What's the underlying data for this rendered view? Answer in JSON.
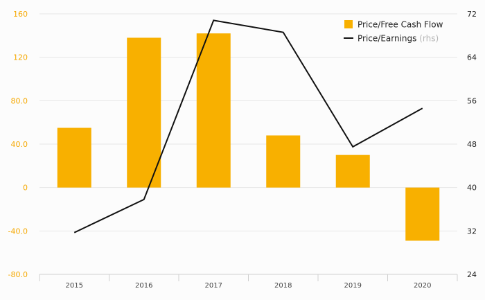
{
  "chart_data": {
    "type": "bar",
    "categories": [
      "2015",
      "2016",
      "2017",
      "2018",
      "2019",
      "2020"
    ],
    "series": [
      {
        "name": "Price/Free Cash Flow",
        "type": "bar",
        "axis": "left",
        "values": [
          55,
          138,
          142,
          48,
          30,
          -49
        ]
      },
      {
        "name": "Price/Earnings",
        "name_note": "(rhs)",
        "type": "line",
        "axis": "right",
        "values": [
          31.7,
          37.8,
          70.8,
          68.6,
          47.5,
          54.6
        ]
      }
    ],
    "y_left": {
      "ylim": [
        -80,
        160
      ],
      "ticks": [
        160,
        120,
        80,
        40,
        0,
        -40,
        -80
      ],
      "tick_labels": [
        "160",
        "120",
        "80.0",
        "40.0",
        "0",
        "-40.0",
        "-80.0"
      ]
    },
    "y_right": {
      "ylim": [
        24,
        72
      ],
      "ticks": [
        72,
        64,
        56,
        48,
        40,
        32,
        24
      ],
      "tick_labels": [
        "72",
        "64",
        "56",
        "48",
        "40",
        "32",
        "24"
      ]
    },
    "grid": true,
    "legend_position": "top-right",
    "colors": {
      "bar": "#f8b000",
      "line": "#111111",
      "left_axis_text": "#f5a800",
      "grid": "#e6e6e6"
    }
  }
}
